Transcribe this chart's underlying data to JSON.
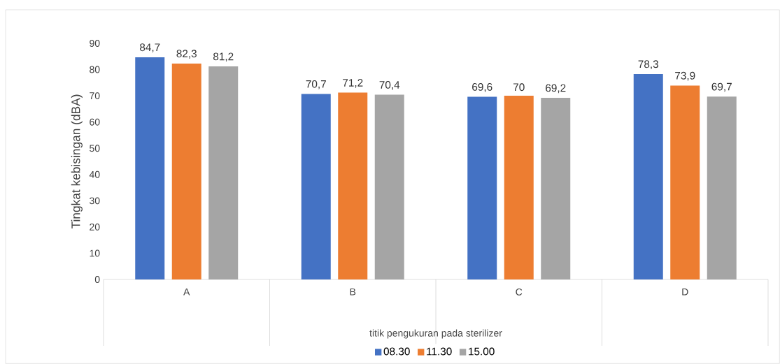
{
  "chart_data": {
    "type": "bar",
    "xlabel": "titik pengukuran pada sterilizer",
    "ylabel": "Tingkat kebisingan  (dBA)",
    "categories": [
      "A",
      "B",
      "C",
      "D"
    ],
    "series": [
      {
        "name": "08.30",
        "color": "#4472c4",
        "values": [
          84.7,
          70.7,
          69.6,
          78.3
        ],
        "value_labels": [
          "84,7",
          "70,7",
          "69,6",
          "78,3"
        ]
      },
      {
        "name": "11.30",
        "color": "#ed7d31",
        "values": [
          82.3,
          71.2,
          70,
          73.9
        ],
        "value_labels": [
          "82,3",
          "71,2",
          "70",
          "73,9"
        ]
      },
      {
        "name": "15.00",
        "color": "#a5a5a5",
        "values": [
          81.2,
          70.4,
          69.2,
          69.7
        ],
        "value_labels": [
          "81,2",
          "70,4",
          "69,2",
          "69,7"
        ]
      }
    ],
    "ylim": [
      0,
      90
    ],
    "yticks": [
      0,
      10,
      20,
      30,
      40,
      50,
      60,
      70,
      80,
      90
    ],
    "legend": "bottom"
  }
}
